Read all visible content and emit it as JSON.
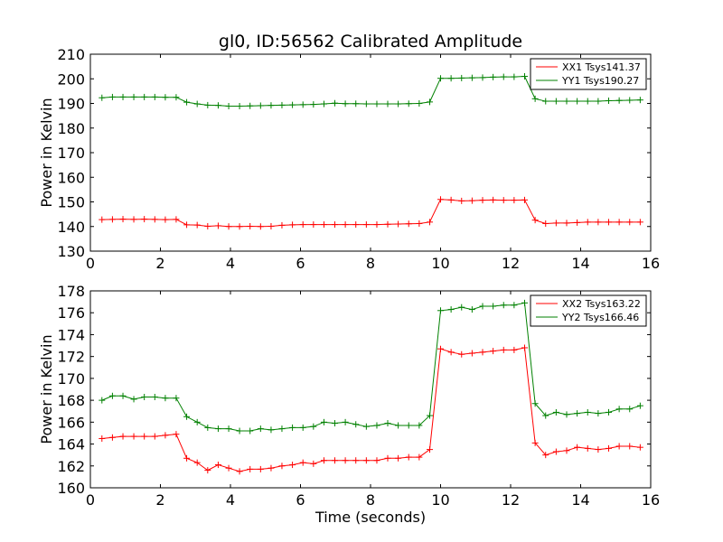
{
  "title": "gl0, ID:56562 Calibrated Amplitude",
  "chart_data": [
    {
      "type": "line",
      "ylabel": "Power in Kelvin",
      "xlabel": "",
      "xlim": [
        0,
        16
      ],
      "ylim": [
        130,
        210
      ],
      "xticks": [
        0,
        2,
        4,
        6,
        8,
        10,
        12,
        14,
        16
      ],
      "yticks": [
        130,
        140,
        150,
        160,
        170,
        180,
        190,
        200,
        210
      ],
      "grid": false,
      "legend_position": "top-right",
      "x": [
        0.33,
        0.63,
        0.93,
        1.24,
        1.54,
        1.84,
        2.14,
        2.45,
        2.75,
        3.05,
        3.35,
        3.65,
        3.95,
        4.26,
        4.56,
        4.86,
        5.16,
        5.47,
        5.77,
        6.07,
        6.37,
        6.67,
        6.98,
        7.28,
        7.58,
        7.88,
        8.18,
        8.49,
        8.79,
        9.09,
        9.39,
        9.69,
        10.0,
        10.3,
        10.6,
        10.9,
        11.2,
        11.5,
        11.8,
        12.1,
        12.4,
        12.7,
        13.0,
        13.3,
        13.6,
        13.9,
        14.2,
        14.5,
        14.8,
        15.1,
        15.4,
        15.7
      ],
      "series": [
        {
          "name": "XX1 Tsys141.37",
          "color": "#ff0000",
          "values": [
            142.8,
            142.9,
            143.0,
            142.9,
            143.0,
            142.9,
            142.8,
            142.9,
            140.7,
            140.6,
            140.1,
            140.3,
            140.0,
            140.0,
            140.1,
            140.0,
            140.1,
            140.5,
            140.7,
            140.8,
            140.8,
            140.8,
            140.8,
            140.8,
            140.8,
            140.8,
            140.8,
            140.9,
            141.0,
            141.1,
            141.2,
            141.8,
            151.0,
            150.8,
            150.4,
            150.5,
            150.7,
            150.8,
            150.7,
            150.7,
            150.8,
            142.6,
            141.2,
            141.4,
            141.4,
            141.6,
            141.8,
            141.8,
            141.8,
            141.8,
            141.8,
            141.8
          ]
        },
        {
          "name": "YY1 Tsys190.27",
          "color": "#008000",
          "values": [
            192.3,
            192.6,
            192.6,
            192.6,
            192.6,
            192.6,
            192.5,
            192.5,
            190.5,
            189.8,
            189.3,
            189.2,
            188.9,
            188.9,
            189.0,
            189.1,
            189.2,
            189.3,
            189.4,
            189.5,
            189.6,
            189.8,
            190.1,
            189.9,
            189.9,
            189.8,
            189.8,
            189.8,
            189.8,
            189.9,
            190.0,
            190.6,
            200.2,
            200.2,
            200.3,
            200.4,
            200.5,
            200.7,
            200.8,
            200.8,
            201.0,
            191.9,
            190.9,
            190.9,
            190.9,
            190.9,
            190.9,
            190.9,
            191.1,
            191.2,
            191.3,
            191.4
          ]
        }
      ]
    },
    {
      "type": "line",
      "ylabel": "Power in Kelvin",
      "xlabel": "Time (seconds)",
      "xlim": [
        0,
        16
      ],
      "ylim": [
        160,
        178
      ],
      "xticks": [
        0,
        2,
        4,
        6,
        8,
        10,
        12,
        14,
        16
      ],
      "yticks": [
        160,
        162,
        164,
        166,
        168,
        170,
        172,
        174,
        176,
        178
      ],
      "grid": false,
      "legend_position": "top-right",
      "x": [
        0.33,
        0.63,
        0.93,
        1.24,
        1.54,
        1.84,
        2.14,
        2.45,
        2.75,
        3.05,
        3.35,
        3.65,
        3.95,
        4.26,
        4.56,
        4.86,
        5.16,
        5.47,
        5.77,
        6.07,
        6.37,
        6.67,
        6.98,
        7.28,
        7.58,
        7.88,
        8.18,
        8.49,
        8.79,
        9.09,
        9.39,
        9.69,
        10.0,
        10.3,
        10.6,
        10.9,
        11.2,
        11.5,
        11.8,
        12.1,
        12.4,
        12.7,
        13.0,
        13.3,
        13.6,
        13.9,
        14.2,
        14.5,
        14.8,
        15.1,
        15.4,
        15.7
      ],
      "series": [
        {
          "name": "XX2 Tsys163.22",
          "color": "#ff0000",
          "values": [
            164.5,
            164.6,
            164.7,
            164.7,
            164.7,
            164.7,
            164.8,
            164.9,
            162.7,
            162.3,
            161.6,
            162.1,
            161.8,
            161.5,
            161.7,
            161.7,
            161.8,
            162.0,
            162.1,
            162.3,
            162.2,
            162.5,
            162.5,
            162.5,
            162.5,
            162.5,
            162.5,
            162.7,
            162.7,
            162.8,
            162.8,
            163.5,
            172.7,
            172.4,
            172.2,
            172.3,
            172.4,
            172.5,
            172.6,
            172.6,
            172.8,
            164.1,
            163.0,
            163.3,
            163.4,
            163.7,
            163.6,
            163.5,
            163.6,
            163.8,
            163.8,
            163.7
          ]
        },
        {
          "name": "YY2 Tsys166.46",
          "color": "#008000",
          "values": [
            168.0,
            168.4,
            168.4,
            168.1,
            168.3,
            168.3,
            168.2,
            168.2,
            166.5,
            166.0,
            165.5,
            165.4,
            165.4,
            165.2,
            165.2,
            165.4,
            165.3,
            165.4,
            165.5,
            165.5,
            165.6,
            166.0,
            165.9,
            166.0,
            165.8,
            165.6,
            165.7,
            165.9,
            165.7,
            165.7,
            165.7,
            166.6,
            176.2,
            176.3,
            176.5,
            176.3,
            176.6,
            176.6,
            176.7,
            176.7,
            176.9,
            167.7,
            166.6,
            166.9,
            166.7,
            166.8,
            166.9,
            166.8,
            166.9,
            167.2,
            167.2,
            167.5
          ]
        }
      ]
    }
  ]
}
